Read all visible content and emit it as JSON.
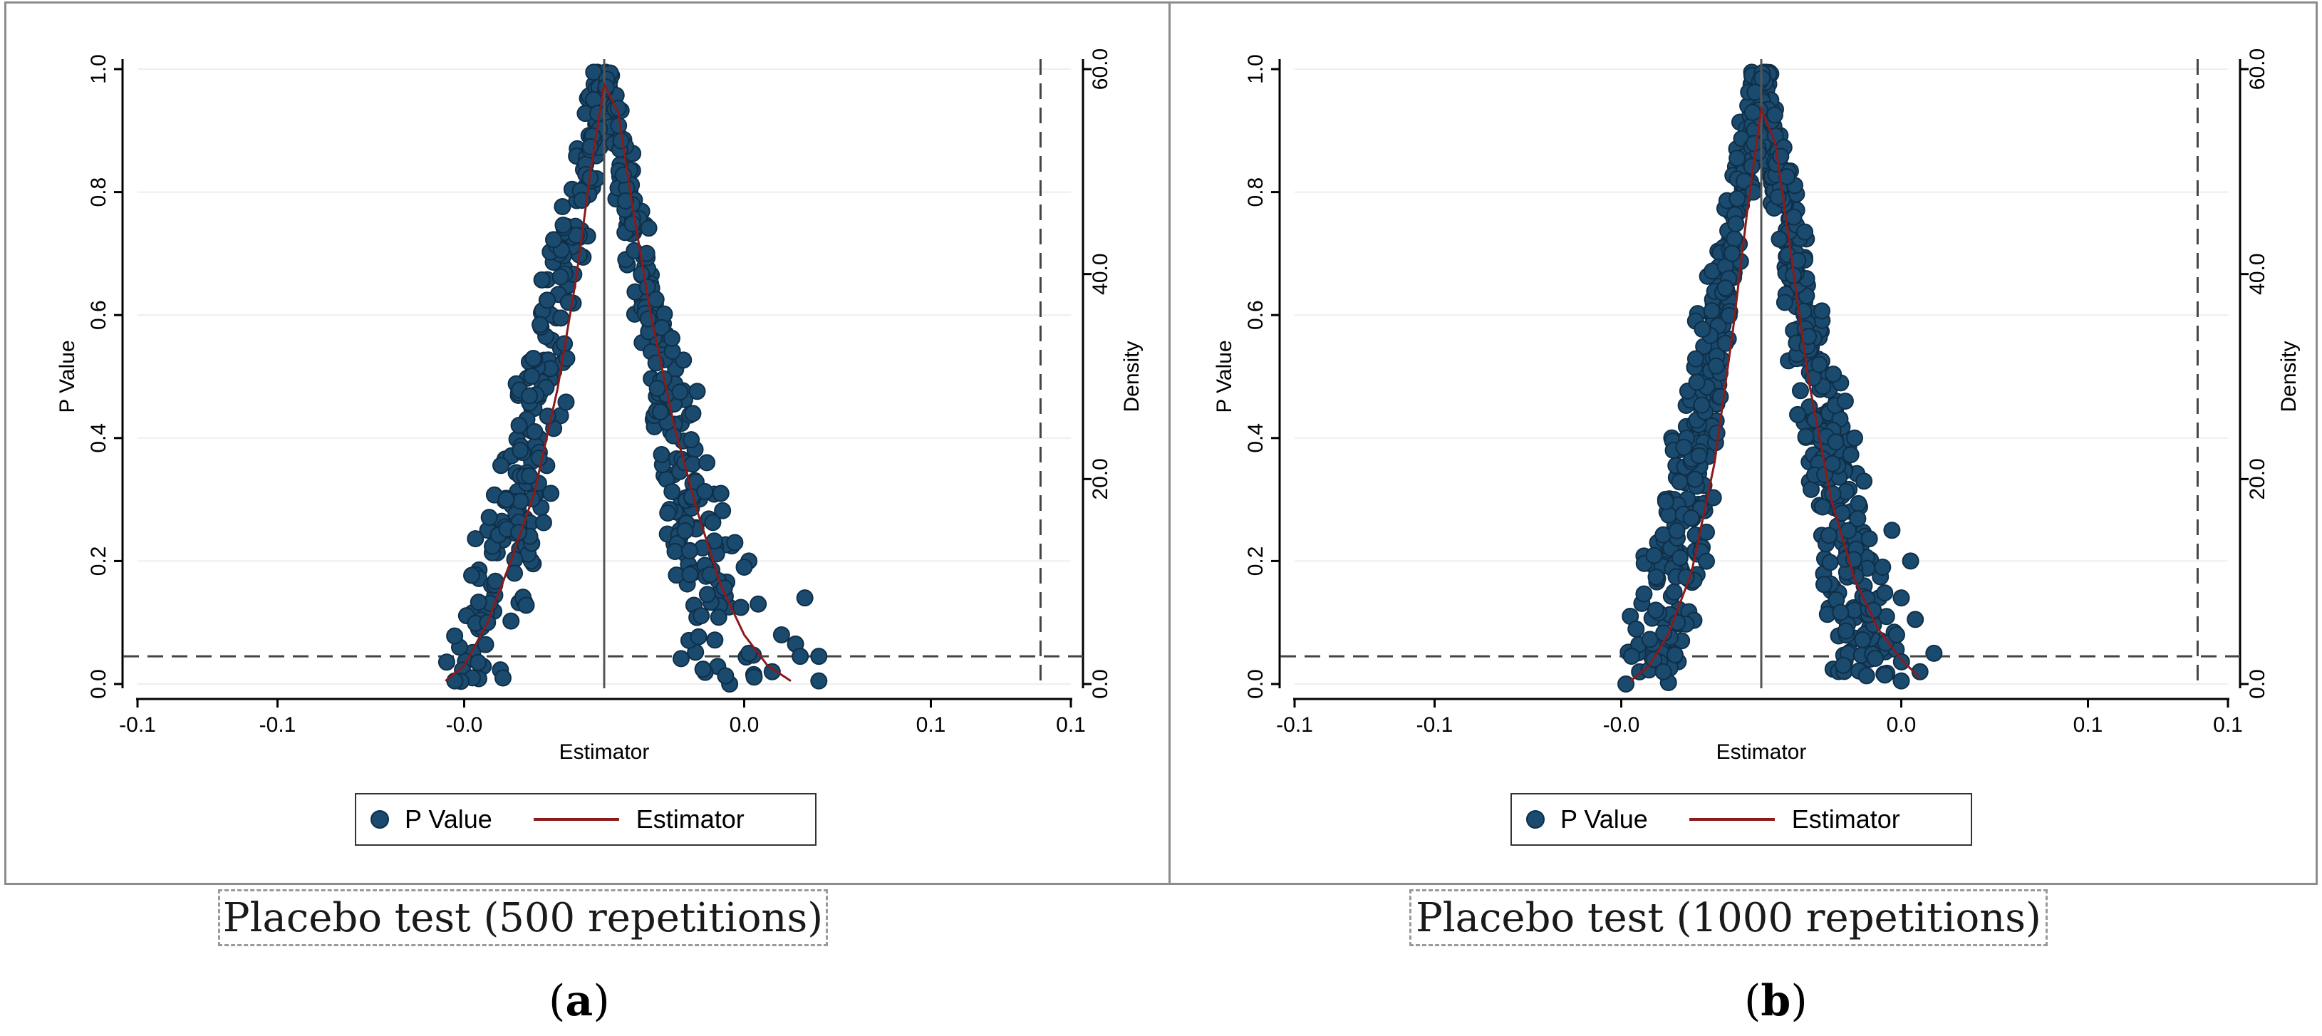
{
  "figure": {
    "caption_a": "Placebo test (500 repetitions)",
    "caption_b": "Placebo test (1000 repetitions)",
    "letter_a": "a",
    "letter_b": "b"
  },
  "colors": {
    "point_fill": "#1a4a6e",
    "point_edge": "#0f2f48",
    "density_line": "#8b1a1a",
    "refline": "#444444",
    "axis": "#000000"
  },
  "chart_data": [
    {
      "type": "scatter",
      "title": "",
      "xlabel": "Estimator",
      "ylabel": "P Value",
      "y2label": "Density",
      "xlim": [
        -0.1,
        0.1
      ],
      "ylim": [
        0,
        1
      ],
      "y2lim": [
        0,
        60
      ],
      "x_ticks": [
        -0.1,
        -0.075,
        -0.05,
        -0.025,
        0.0,
        0.025,
        0.05,
        0.075,
        0.1
      ],
      "x_tick_labels": [
        "-0.1",
        "-0.1",
        "-0.0",
        "0.0",
        "0.1",
        "0.1"
      ],
      "x_tick_positions": [
        -0.1,
        -0.07,
        -0.03,
        0.03,
        0.07,
        0.1
      ],
      "y_tick_labels": [
        "0.0",
        "0.2",
        "0.4",
        "0.6",
        "0.8",
        "1.0"
      ],
      "y_ticks": [
        0,
        0.2,
        0.4,
        0.6,
        0.8,
        1.0
      ],
      "y2_tick_labels": [
        "0.0",
        "20.0",
        "40.0",
        "60.0"
      ],
      "y2_ticks": [
        0,
        20,
        40,
        60
      ],
      "hlines": [
        0.045
      ],
      "vlines_solid": [
        0.0
      ],
      "vlines_dashed": [
        0.0935
      ],
      "legend": [
        "P Value",
        "Estimator"
      ],
      "legend_position": "bottom",
      "repetitions": 500,
      "x_spread": 0.034,
      "outer_points": [
        [
          0.028,
          0.23
        ],
        [
          0.031,
          0.2
        ],
        [
          0.03,
          0.19
        ],
        [
          0.033,
          0.13
        ],
        [
          0.038,
          0.08
        ],
        [
          0.041,
          0.065
        ],
        [
          0.042,
          0.045
        ],
        [
          0.046,
          0.045
        ],
        [
          0.043,
          0.14
        ],
        [
          0.046,
          0.005
        ],
        [
          0.025,
          0.31
        ],
        [
          0.022,
          0.36
        ],
        [
          0.019,
          0.44
        ],
        [
          0.036,
          0.02
        ],
        [
          0.031,
          0.05
        ],
        [
          -0.032,
          0.005
        ],
        [
          -0.027,
          0.035
        ],
        [
          -0.025,
          0.1
        ],
        [
          -0.021,
          0.3
        ],
        [
          -0.018,
          0.38
        ]
      ],
      "density_curve": [
        [
          -0.034,
          0.005
        ],
        [
          -0.03,
          0.03
        ],
        [
          -0.025,
          0.1
        ],
        [
          -0.02,
          0.2
        ],
        [
          -0.015,
          0.31
        ],
        [
          -0.01,
          0.48
        ],
        [
          -0.006,
          0.66
        ],
        [
          -0.003,
          0.83
        ],
        [
          0.0,
          0.975
        ],
        [
          0.003,
          0.93
        ],
        [
          0.006,
          0.78
        ],
        [
          0.01,
          0.6
        ],
        [
          0.015,
          0.42
        ],
        [
          0.02,
          0.28
        ],
        [
          0.025,
          0.16
        ],
        [
          0.03,
          0.08
        ],
        [
          0.035,
          0.03
        ],
        [
          0.04,
          0.005
        ]
      ]
    },
    {
      "type": "scatter",
      "title": "",
      "xlabel": "Estimator",
      "ylabel": "P Value",
      "y2label": "Density",
      "xlim": [
        -0.1,
        0.1
      ],
      "ylim": [
        0,
        1
      ],
      "y2lim": [
        0,
        60
      ],
      "x_tick_labels": [
        "-0.1",
        "-0.1",
        "-0.0",
        "0.0",
        "0.1",
        "0.1"
      ],
      "x_tick_positions": [
        -0.1,
        -0.07,
        -0.03,
        0.03,
        0.07,
        0.1
      ],
      "y_tick_labels": [
        "0.0",
        "0.2",
        "0.4",
        "0.6",
        "0.8",
        "1.0"
      ],
      "y_ticks": [
        0,
        0.2,
        0.4,
        0.6,
        0.8,
        1.0
      ],
      "y2_tick_labels": [
        "0.0",
        "20.0",
        "40.0",
        "60.0"
      ],
      "y2_ticks": [
        0,
        20,
        40,
        60
      ],
      "hlines": [
        0.045
      ],
      "vlines_solid": [
        0.0
      ],
      "vlines_dashed": [
        0.0935
      ],
      "legend": [
        "P Value",
        "Estimator"
      ],
      "legend_position": "bottom",
      "repetitions": 1000,
      "x_spread": 0.03,
      "outer_points": [
        [
          -0.029,
          0.0
        ],
        [
          -0.023,
          0.04
        ],
        [
          -0.021,
          0.02
        ],
        [
          0.028,
          0.25
        ],
        [
          0.03,
          0.14
        ],
        [
          0.033,
          0.105
        ],
        [
          0.037,
          0.05
        ],
        [
          0.032,
          0.2
        ],
        [
          0.026,
          0.19
        ],
        [
          0.022,
          0.33
        ],
        [
          0.02,
          0.4
        ],
        [
          0.018,
          0.46
        ],
        [
          0.034,
          0.02
        ],
        [
          0.029,
          0.08
        ],
        [
          0.024,
          0.12
        ],
        [
          -0.018,
          0.1
        ],
        [
          -0.015,
          0.27
        ],
        [
          0.03,
          0.005
        ]
      ],
      "density_curve": [
        [
          -0.028,
          0.005
        ],
        [
          -0.024,
          0.03
        ],
        [
          -0.02,
          0.08
        ],
        [
          -0.015,
          0.18
        ],
        [
          -0.01,
          0.36
        ],
        [
          -0.006,
          0.58
        ],
        [
          -0.003,
          0.77
        ],
        [
          0.0,
          0.935
        ],
        [
          0.003,
          0.88
        ],
        [
          0.006,
          0.72
        ],
        [
          0.01,
          0.5
        ],
        [
          0.015,
          0.3
        ],
        [
          0.02,
          0.17
        ],
        [
          0.025,
          0.09
        ],
        [
          0.03,
          0.04
        ],
        [
          0.034,
          0.01
        ]
      ]
    }
  ]
}
